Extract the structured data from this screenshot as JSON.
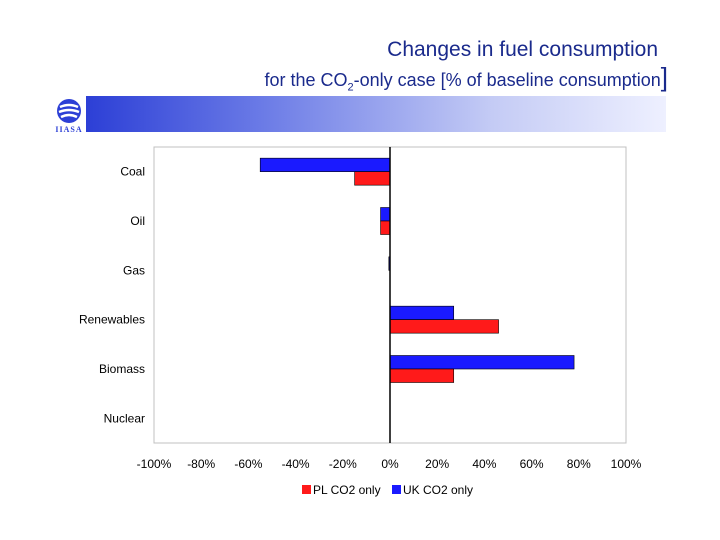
{
  "header": {
    "title": "Changes in fuel consumption",
    "subtitle_pre": "for the CO",
    "subtitle_sub": "2",
    "subtitle_post": "-only case [% of baseline consumption",
    "subtitle_bracket": "]"
  },
  "logo": {
    "text": "IIASA",
    "icon": "iiasa-logo-icon"
  },
  "colors": {
    "title": "#1a2a8c",
    "pl": "#ff1a1a",
    "uk": "#1a1aff",
    "banner": "#2c3fd6"
  },
  "chart_data": {
    "type": "bar",
    "orientation": "horizontal",
    "categories": [
      "Coal",
      "Oil",
      "Gas",
      "Renewables",
      "Biomass",
      "Nuclear"
    ],
    "series": [
      {
        "name": "UK CO2 only",
        "color": "#1a1aff",
        "values": [
          -55,
          -4,
          -0.5,
          27,
          78,
          0
        ]
      },
      {
        "name": "PL CO2 only",
        "color": "#ff1a1a",
        "values": [
          -15,
          -4,
          0,
          46,
          27,
          0
        ]
      }
    ],
    "xlim": [
      -100,
      100
    ],
    "xticks": [
      "-100%",
      "-80%",
      "-60%",
      "-40%",
      "-20%",
      "0%",
      "20%",
      "40%",
      "60%",
      "80%",
      "100%"
    ],
    "legend": [
      {
        "label": "PL CO2 only",
        "color": "#ff1a1a"
      },
      {
        "label": "UK CO2 only",
        "color": "#1a1aff"
      }
    ],
    "legend_position": "bottom"
  }
}
